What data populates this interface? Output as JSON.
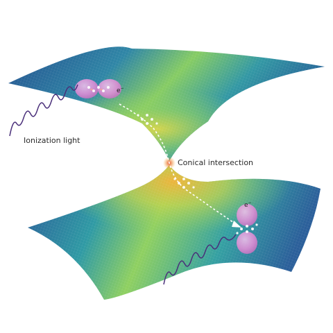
{
  "labels": {
    "ionization_light": "Ionization light",
    "conical_intersection": "Conical intersection",
    "electron_symbol": "e",
    "electron_charge": "−"
  },
  "colors": {
    "surface_low": "#24508f",
    "surface_mid": "#2f9aa4",
    "surface_high": "#8fd060",
    "surface_peak": "#f2b23a",
    "intersection": "#e8542c",
    "wave": "#4a2f7a",
    "orbital": "#e98fd9",
    "path": "#ffffff"
  }
}
